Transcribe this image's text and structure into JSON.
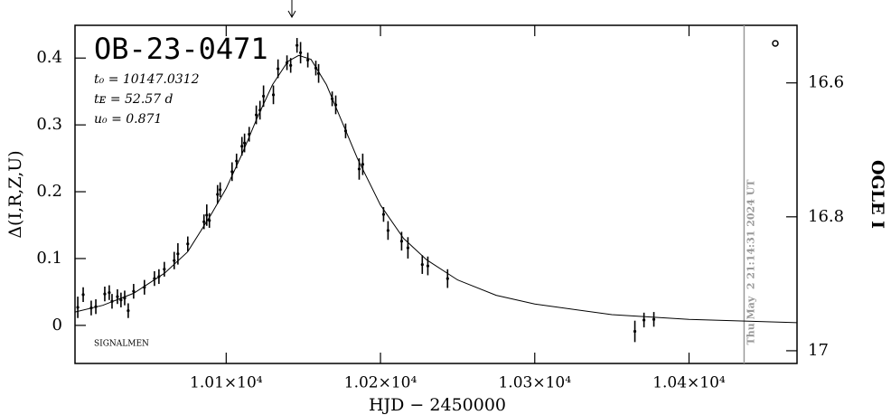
{
  "chart_data": {
    "type": "scatter",
    "title": "OB-23-0471",
    "annotations": [
      "t₀ = 10147.0312",
      "tᴇ = 52.57 d",
      "u₀ = 0.871"
    ],
    "footer": "SIGNALMEN",
    "x_label": "HJD − 2450000",
    "y_label": "Δ(I,R,Z,U)",
    "y2_label": "OGLE I",
    "xlim": [
      10002,
      10470
    ],
    "ylim": [
      -0.057,
      0.449
    ],
    "y2lim": [
      17.019,
      16.514
    ],
    "xticks": [
      {
        "value": 10100,
        "label": "1.01×10⁴"
      },
      {
        "value": 10200,
        "label": "1.02×10⁴"
      },
      {
        "value": 10300,
        "label": "1.03×10⁴"
      },
      {
        "value": 10400,
        "label": "1.04×10⁴"
      }
    ],
    "yticks": [
      0,
      0.1,
      0.2,
      0.3,
      0.4
    ],
    "y2ticks": [
      16.6,
      16.8,
      17
    ],
    "color": "#000000",
    "now_line": {
      "x": 10435.7,
      "label": "Thu May  2 21:14:31 2024 UT",
      "color": "#999999"
    },
    "points": {
      "x": [
        10003.8,
        10007.3,
        10012.5,
        10015.5,
        10021.3,
        10024.2,
        10026.0,
        10029.5,
        10031.8,
        10034.2,
        10036.5,
        10040.0,
        10047.0,
        10053.5,
        10056.4,
        10059.9,
        10066.3,
        10068.7,
        10075.1,
        10085.6,
        10087.4,
        10089.1,
        10094.4,
        10096.1,
        10103.8,
        10106.7,
        10110.2,
        10111.9,
        10114.9,
        10119.5,
        10121.9,
        10124.2,
        10130.6,
        10133.6,
        10139.4,
        10141.8,
        10145.9,
        10148.2,
        10152.9,
        10158.1,
        10159.9,
        10168.7,
        10171.0,
        10177.4,
        10186.2,
        10188.5,
        10202.0,
        10204.9,
        10213.7,
        10217.8,
        10227.1,
        10230.7,
        10243.5,
        10364.9,
        10370.8,
        10377.2
      ],
      "values": [
        0.027,
        0.046,
        0.026,
        0.028,
        0.047,
        0.049,
        0.036,
        0.043,
        0.038,
        0.041,
        0.022,
        0.051,
        0.057,
        0.07,
        0.073,
        0.084,
        0.097,
        0.107,
        0.122,
        0.155,
        0.165,
        0.157,
        0.196,
        0.203,
        0.23,
        0.246,
        0.268,
        0.273,
        0.286,
        0.315,
        0.322,
        0.343,
        0.345,
        0.384,
        0.393,
        0.389,
        0.419,
        0.408,
        0.397,
        0.385,
        0.377,
        0.339,
        0.33,
        0.291,
        0.234,
        0.241,
        0.166,
        0.142,
        0.126,
        0.116,
        0.091,
        0.089,
        0.07,
        -0.009,
        0.008,
        0.009
      ],
      "errors": [
        0.016,
        0.011,
        0.011,
        0.011,
        0.011,
        0.011,
        0.011,
        0.011,
        0.011,
        0.011,
        0.011,
        0.011,
        0.011,
        0.011,
        0.011,
        0.011,
        0.013,
        0.016,
        0.011,
        0.011,
        0.016,
        0.011,
        0.014,
        0.011,
        0.014,
        0.011,
        0.014,
        0.014,
        0.011,
        0.014,
        0.014,
        0.016,
        0.014,
        0.014,
        0.011,
        0.011,
        0.011,
        0.016,
        0.011,
        0.011,
        0.014,
        0.011,
        0.014,
        0.011,
        0.016,
        0.016,
        0.011,
        0.014,
        0.014,
        0.016,
        0.014,
        0.014,
        0.014,
        0.016,
        0.011,
        0.011
      ]
    },
    "model": {
      "x": [
        10002,
        10020,
        10040,
        10060,
        10075,
        10090,
        10100,
        10110,
        10120,
        10130,
        10140,
        10147,
        10155,
        10165,
        10175,
        10185,
        10200,
        10215,
        10230,
        10250,
        10275,
        10300,
        10350,
        10400,
        10470
      ],
      "values": [
        0.02,
        0.03,
        0.048,
        0.078,
        0.11,
        0.165,
        0.205,
        0.255,
        0.31,
        0.36,
        0.395,
        0.404,
        0.398,
        0.36,
        0.305,
        0.25,
        0.18,
        0.13,
        0.098,
        0.068,
        0.045,
        0.032,
        0.016,
        0.009,
        0.004
      ]
    }
  }
}
